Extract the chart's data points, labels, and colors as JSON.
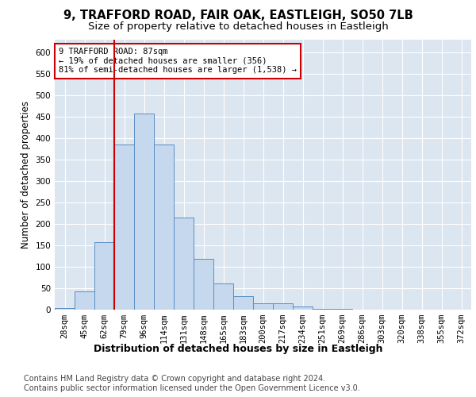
{
  "title_line1": "9, TRAFFORD ROAD, FAIR OAK, EASTLEIGH, SO50 7LB",
  "title_line2": "Size of property relative to detached houses in Eastleigh",
  "xlabel": "Distribution of detached houses by size in Eastleigh",
  "ylabel": "Number of detached properties",
  "bar_labels": [
    "28sqm",
    "45sqm",
    "62sqm",
    "79sqm",
    "96sqm",
    "114sqm",
    "131sqm",
    "148sqm",
    "165sqm",
    "183sqm",
    "200sqm",
    "217sqm",
    "234sqm",
    "251sqm",
    "269sqm",
    "286sqm",
    "303sqm",
    "320sqm",
    "338sqm",
    "355sqm",
    "372sqm"
  ],
  "bar_values": [
    3,
    42,
    158,
    385,
    458,
    386,
    215,
    118,
    62,
    32,
    14,
    14,
    8,
    2,
    1,
    0,
    0,
    0,
    0,
    0,
    0
  ],
  "bar_color": "#c5d8ed",
  "bar_edgecolor": "#5b8ec4",
  "vline_bin_index": 3,
  "annotation_title": "9 TRAFFORD ROAD: 87sqm",
  "annotation_line1": "← 19% of detached houses are smaller (356)",
  "annotation_line2": "81% of semi-detached houses are larger (1,538) →",
  "annotation_box_color": "#ffffff",
  "annotation_box_edgecolor": "#cc0000",
  "vline_color": "#cc0000",
  "ylim": [
    0,
    630
  ],
  "yticks": [
    0,
    50,
    100,
    150,
    200,
    250,
    300,
    350,
    400,
    450,
    500,
    550,
    600
  ],
  "plot_bg_color": "#dce6f1",
  "footer_line1": "Contains HM Land Registry data © Crown copyright and database right 2024.",
  "footer_line2": "Contains public sector information licensed under the Open Government Licence v3.0.",
  "title_fontsize": 10.5,
  "subtitle_fontsize": 9.5,
  "xlabel_fontsize": 9,
  "ylabel_fontsize": 8.5,
  "tick_fontsize": 7.5,
  "annotation_fontsize": 7.5,
  "footer_fontsize": 7
}
